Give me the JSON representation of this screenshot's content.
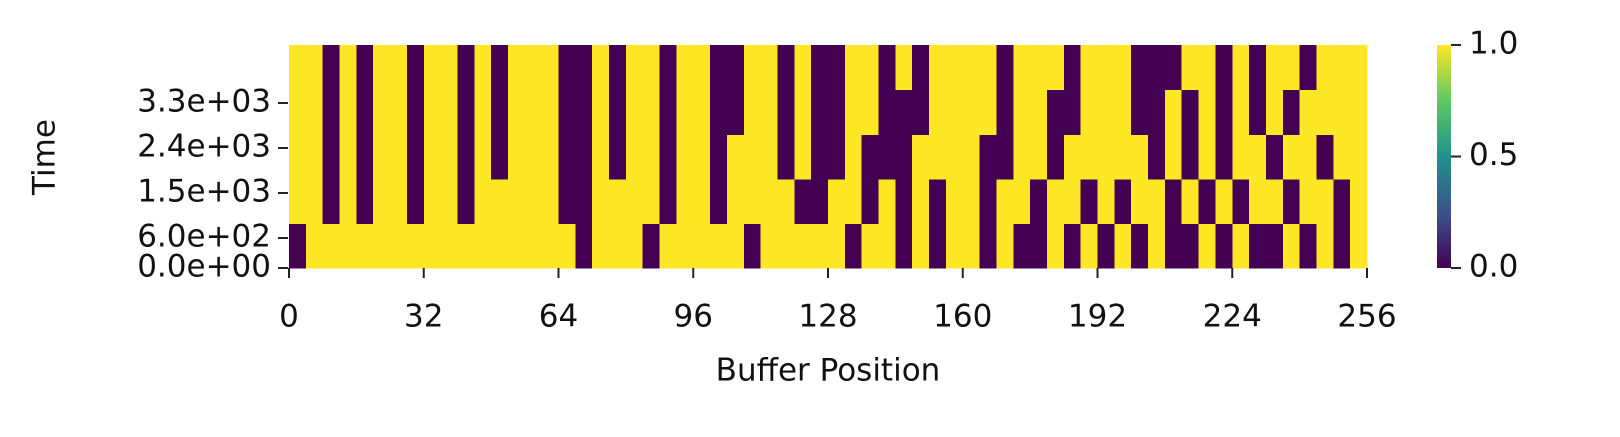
{
  "chart_data": {
    "type": "heatmap",
    "xlabel": "Buffer Position",
    "ylabel": "Time",
    "xlim": [
      0,
      256
    ],
    "xticks": [
      0,
      32,
      64,
      96,
      128,
      160,
      192,
      224,
      256
    ],
    "ylim": [
      0,
      4460
    ],
    "yticks": [
      {
        "value": 0,
        "label": "0.0e+00"
      },
      {
        "value": 600,
        "label": "6.0e+02"
      },
      {
        "value": 1500,
        "label": "1.5e+03"
      },
      {
        "value": 2400,
        "label": "2.4e+03"
      },
      {
        "value": 3300,
        "label": "3.3e+03"
      }
    ],
    "cmap": [
      "#440154",
      "#3b528b",
      "#21918c",
      "#5ec962",
      "#fde725"
    ],
    "clim": [
      0,
      1
    ],
    "cticks": [
      {
        "value": 0,
        "label": "0.0"
      },
      {
        "value": 0.5,
        "label": "0.5"
      },
      {
        "value": 1,
        "label": "1.0"
      }
    ],
    "z": [
      [
        0,
        1,
        1,
        1,
        1,
        1,
        1,
        1,
        1,
        1,
        1,
        1,
        1,
        1,
        1,
        1,
        1,
        0,
        1,
        1,
        1,
        0,
        1,
        1,
        1,
        1,
        1,
        0,
        1,
        1,
        1,
        1,
        1,
        0,
        1,
        1,
        0,
        1,
        0,
        1,
        1,
        0,
        1,
        0,
        0,
        1,
        0,
        1,
        0,
        1,
        0,
        1,
        0,
        0,
        1,
        0,
        1,
        0,
        0,
        1,
        0,
        1,
        0,
        1
      ],
      [
        1,
        1,
        0,
        1,
        0,
        1,
        1,
        0,
        1,
        1,
        0,
        1,
        1,
        1,
        1,
        1,
        0,
        0,
        1,
        1,
        1,
        1,
        0,
        1,
        1,
        0,
        1,
        1,
        1,
        1,
        0,
        0,
        1,
        1,
        0,
        1,
        0,
        1,
        0,
        1,
        1,
        0,
        1,
        1,
        0,
        1,
        1,
        0,
        1,
        0,
        1,
        1,
        0,
        1,
        0,
        1,
        0,
        1,
        1,
        0,
        1,
        1,
        0,
        1
      ],
      [
        1,
        1,
        0,
        1,
        0,
        1,
        1,
        0,
        1,
        1,
        0,
        1,
        0,
        1,
        1,
        1,
        0,
        0,
        1,
        0,
        1,
        1,
        0,
        1,
        1,
        0,
        1,
        1,
        1,
        0,
        1,
        0,
        0,
        1,
        0,
        0,
        0,
        1,
        1,
        1,
        1,
        0,
        0,
        1,
        1,
        0,
        1,
        1,
        1,
        1,
        1,
        0,
        1,
        0,
        1,
        0,
        1,
        1,
        0,
        1,
        1,
        0,
        1,
        1
      ],
      [
        1,
        1,
        0,
        1,
        0,
        1,
        1,
        0,
        1,
        1,
        0,
        1,
        0,
        1,
        1,
        1,
        0,
        0,
        1,
        0,
        1,
        1,
        0,
        1,
        1,
        0,
        0,
        1,
        1,
        0,
        1,
        0,
        0,
        1,
        1,
        0,
        0,
        0,
        1,
        1,
        1,
        1,
        0,
        1,
        1,
        0,
        0,
        1,
        1,
        1,
        0,
        0,
        1,
        0,
        1,
        0,
        1,
        0,
        1,
        0,
        1,
        1,
        1,
        1
      ],
      [
        1,
        1,
        0,
        1,
        0,
        1,
        1,
        0,
        1,
        1,
        0,
        1,
        0,
        1,
        1,
        1,
        0,
        0,
        1,
        0,
        1,
        1,
        0,
        1,
        1,
        0,
        0,
        1,
        1,
        0,
        1,
        0,
        0,
        1,
        1,
        0,
        1,
        0,
        1,
        1,
        1,
        1,
        0,
        1,
        1,
        1,
        0,
        1,
        1,
        1,
        0,
        0,
        0,
        1,
        1,
        0,
        1,
        0,
        1,
        1,
        0,
        1,
        1,
        1
      ]
    ]
  }
}
